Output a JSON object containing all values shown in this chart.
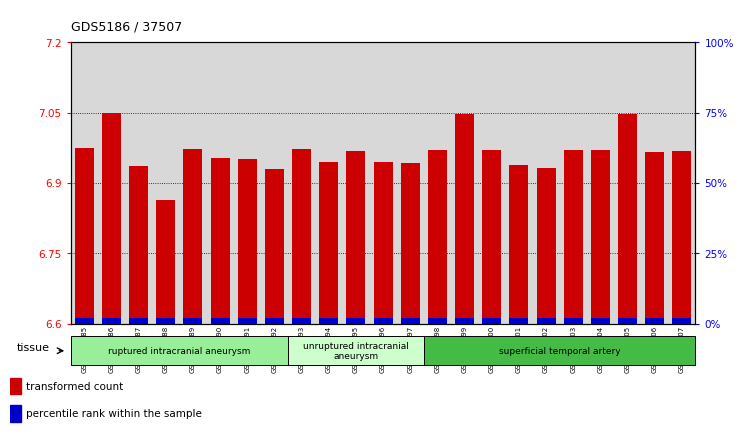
{
  "title": "GDS5186 / 37507",
  "samples": [
    "GSM1306885",
    "GSM1306886",
    "GSM1306887",
    "GSM1306888",
    "GSM1306889",
    "GSM1306890",
    "GSM1306891",
    "GSM1306892",
    "GSM1306893",
    "GSM1306894",
    "GSM1306895",
    "GSM1306896",
    "GSM1306897",
    "GSM1306898",
    "GSM1306899",
    "GSM1306900",
    "GSM1306901",
    "GSM1306902",
    "GSM1306903",
    "GSM1306904",
    "GSM1306905",
    "GSM1306906",
    "GSM1306907"
  ],
  "transformed_count": [
    6.975,
    7.048,
    6.935,
    6.863,
    6.972,
    6.953,
    6.95,
    6.93,
    6.972,
    6.945,
    6.968,
    6.945,
    6.942,
    6.97,
    7.046,
    6.97,
    6.938,
    6.932,
    6.97,
    6.97,
    7.046,
    6.965,
    6.967
  ],
  "percentile_rank": [
    2,
    8,
    3,
    3,
    5,
    4,
    4,
    4,
    5,
    7,
    5,
    4,
    4,
    5,
    5,
    5,
    5,
    4,
    5,
    5,
    8,
    5,
    5
  ],
  "bar_color": "#cc0000",
  "percentile_color": "#0000cc",
  "ylim_left": [
    6.6,
    7.2
  ],
  "ylim_right": [
    0,
    100
  ],
  "yticks_left": [
    6.6,
    6.75,
    6.9,
    7.05,
    7.2
  ],
  "yticks_right": [
    0,
    25,
    50,
    75,
    100
  ],
  "ytick_labels_right": [
    "0%",
    "25%",
    "50%",
    "75%",
    "100%"
  ],
  "gridlines": [
    6.75,
    6.9,
    7.05
  ],
  "groups": [
    {
      "label": "ruptured intracranial aneurysm",
      "start": 0,
      "end": 8,
      "color": "#99ee99"
    },
    {
      "label": "unruptured intracranial\naneurysm",
      "start": 8,
      "end": 13,
      "color": "#ccffcc"
    },
    {
      "label": "superficial temporal artery",
      "start": 13,
      "end": 23,
      "color": "#44bb44"
    }
  ],
  "tissue_label": "tissue",
  "background_color": "#d8d8d8",
  "plot_bg_color": "#ffffff"
}
